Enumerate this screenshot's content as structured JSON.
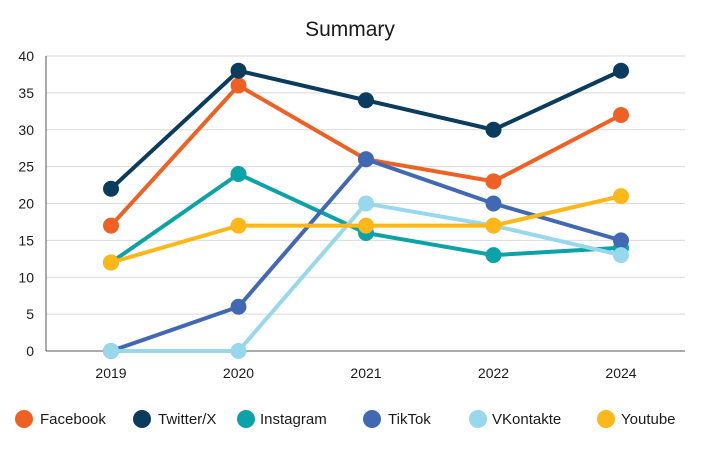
{
  "chart_data": {
    "type": "line",
    "title": "Summary",
    "xlabel": "",
    "ylabel": "",
    "categories": [
      "2019",
      "2020",
      "2021",
      "2022",
      "2024"
    ],
    "ylim": [
      0,
      40
    ],
    "yticks": [
      0,
      5,
      10,
      15,
      20,
      25,
      30,
      35,
      40
    ],
    "grid": true,
    "legend_position": "bottom",
    "series": [
      {
        "name": "Facebook",
        "color": "#EE6123",
        "values": [
          17,
          36,
          26,
          23,
          32
        ]
      },
      {
        "name": "Twitter/X",
        "color": "#0B3C5D",
        "values": [
          22,
          38,
          34,
          30,
          38
        ]
      },
      {
        "name": "Instagram",
        "color": "#0BA3A8",
        "values": [
          12,
          24,
          16,
          13,
          14
        ]
      },
      {
        "name": "TikTok",
        "color": "#4169B3",
        "values": [
          0,
          6,
          26,
          20,
          15
        ]
      },
      {
        "name": "VKontakte",
        "color": "#97D8EC",
        "values": [
          0,
          0,
          20,
          17,
          13
        ]
      },
      {
        "name": "Youtube",
        "color": "#FDB719",
        "values": [
          12,
          17,
          17,
          17,
          21
        ]
      }
    ]
  }
}
